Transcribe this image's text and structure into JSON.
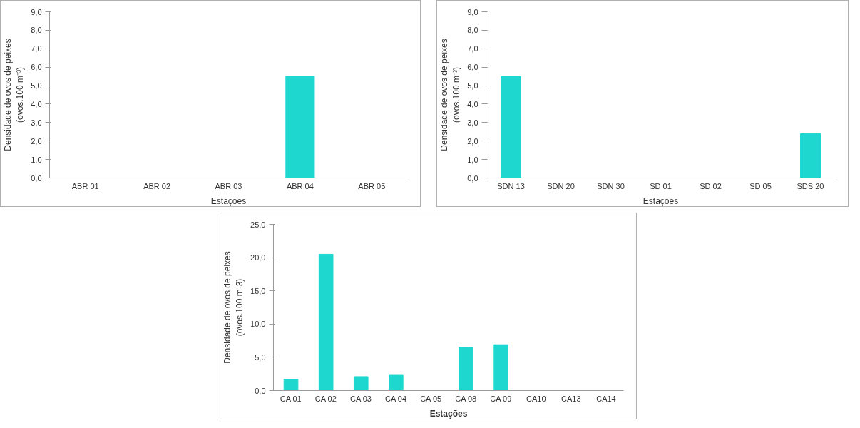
{
  "chart_data": [
    {
      "type": "bar",
      "categories": [
        "ABR 01",
        "ABR 02",
        "ABR 03",
        "ABR 04",
        "ABR 05"
      ],
      "values": [
        0,
        0,
        0,
        5.5,
        0
      ],
      "color": "#1ed8d0",
      "xlabel": "Estações",
      "ylabel": "Densidade de ovos de peixes\n(ovos.100 m⁻³)",
      "ylim": [
        0,
        9
      ],
      "yticks": [
        {
          "value": 0,
          "label": "0,0"
        },
        {
          "value": 1,
          "label": "1,0"
        },
        {
          "value": 2,
          "label": "2,0"
        },
        {
          "value": 3,
          "label": "3,0"
        },
        {
          "value": 4,
          "label": "4,0"
        },
        {
          "value": 5,
          "label": "5,0"
        },
        {
          "value": 6,
          "label": "6,0"
        },
        {
          "value": 7,
          "label": "7,0"
        },
        {
          "value": 8,
          "label": "8,0"
        },
        {
          "value": 9,
          "label": "9,0"
        }
      ],
      "grid": false,
      "legend": false
    },
    {
      "type": "bar",
      "categories": [
        "SDN 13",
        "SDN 20",
        "SDN 30",
        "SD 01",
        "SD 02",
        "SD 05",
        "SDS 20"
      ],
      "values": [
        5.5,
        0,
        0,
        0,
        0,
        0,
        2.4
      ],
      "color": "#1ed8d0",
      "xlabel": "Estações",
      "ylabel": "Densidade de ovos de peixes\n(ovos.100 m⁻³)",
      "ylim": [
        0,
        9
      ],
      "yticks": [
        {
          "value": 0,
          "label": "0,0"
        },
        {
          "value": 1,
          "label": "1,0"
        },
        {
          "value": 2,
          "label": "2,0"
        },
        {
          "value": 3,
          "label": "3,0"
        },
        {
          "value": 4,
          "label": "4,0"
        },
        {
          "value": 5,
          "label": "5,0"
        },
        {
          "value": 6,
          "label": "6,0"
        },
        {
          "value": 7,
          "label": "7,0"
        },
        {
          "value": 8,
          "label": "8,0"
        },
        {
          "value": 9,
          "label": "9,0"
        }
      ],
      "grid": false,
      "legend": false
    },
    {
      "type": "bar",
      "categories": [
        "CA 01",
        "CA 02",
        "CA 03",
        "CA 04",
        "CA 05",
        "CA 08",
        "CA 09",
        "CA10",
        "CA13",
        "CA14"
      ],
      "values": [
        1.7,
        20.5,
        2.1,
        2.3,
        0,
        6.5,
        6.9,
        0,
        0,
        0
      ],
      "color": "#1ed8d0",
      "xlabel": "Estações",
      "ylabel": "Densidade de ovos de peixes\n(ovos.100 m-3)",
      "ylim": [
        0,
        25
      ],
      "yticks": [
        {
          "value": 0,
          "label": "0,0"
        },
        {
          "value": 5,
          "label": "5,0"
        },
        {
          "value": 10,
          "label": "10,0"
        },
        {
          "value": 15,
          "label": "15,0"
        },
        {
          "value": 20,
          "label": "20,0"
        },
        {
          "value": 25,
          "label": "25,0"
        }
      ],
      "grid": false,
      "legend": false
    }
  ]
}
